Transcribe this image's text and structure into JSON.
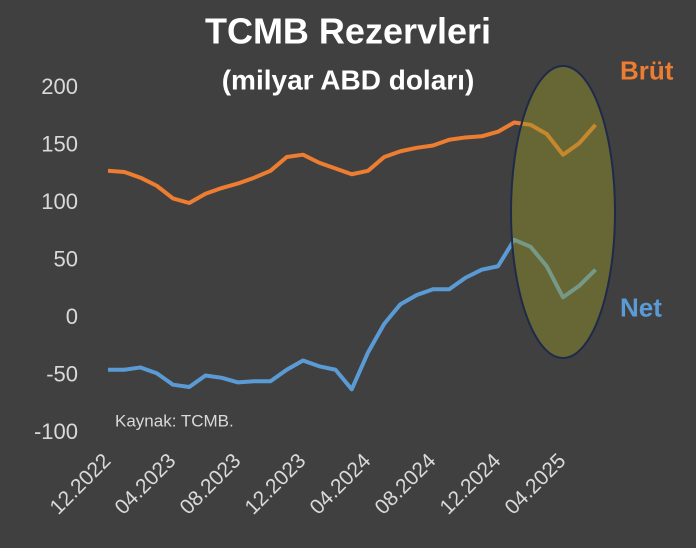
{
  "chart_data": {
    "type": "line",
    "title": "TCMB Rezervleri",
    "subtitle": "(milyar ABD doları)",
    "source": "Kaynak: TCMB.",
    "categories": [
      "12.2022",
      null,
      null,
      null,
      "04.2023",
      null,
      null,
      null,
      "08.2023",
      null,
      null,
      null,
      "12.2023",
      null,
      null,
      null,
      "04.2024",
      null,
      null,
      null,
      "08.2024",
      null,
      null,
      null,
      "12.2024",
      null,
      null,
      null,
      "04.2025",
      null,
      null
    ],
    "series": [
      {
        "name": "Brüt",
        "color": "#ed7d31",
        "values": [
          128,
          127,
          122,
          115,
          104,
          100,
          108,
          113,
          117,
          122,
          128,
          140,
          142,
          135,
          130,
          125,
          128,
          140,
          145,
          148,
          150,
          155,
          157,
          158,
          162,
          170,
          168,
          160,
          142,
          152,
          168
        ]
      },
      {
        "name": "Net",
        "color": "#5b9bd5",
        "values": [
          -45,
          -45,
          -43,
          -48,
          -58,
          -60,
          -50,
          -52,
          -56,
          -55,
          -55,
          -45,
          -37,
          -42,
          -45,
          -62,
          -30,
          -5,
          12,
          20,
          25,
          25,
          35,
          42,
          45,
          68,
          62,
          45,
          18,
          28,
          42
        ]
      }
    ],
    "ylim": [
      -100,
      200
    ],
    "yticks": [
      -100,
      -50,
      0,
      50,
      100,
      150,
      200
    ],
    "grid": false
  }
}
